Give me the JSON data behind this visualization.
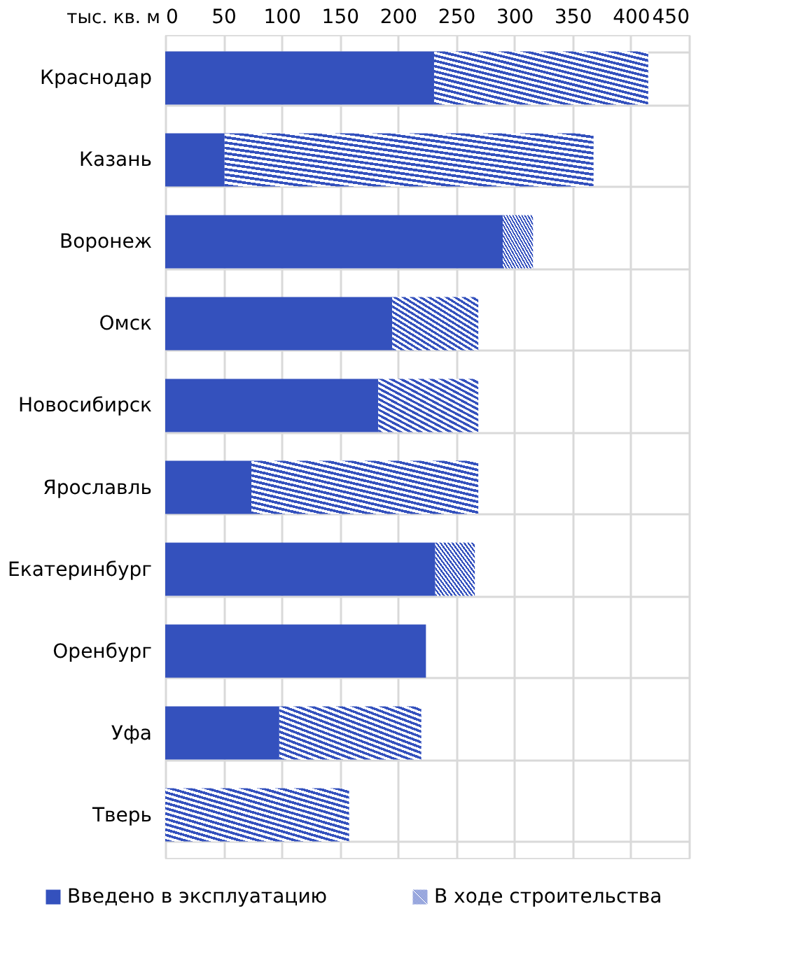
{
  "chart_data": {
    "type": "bar",
    "orientation": "horizontal",
    "stacked": true,
    "xlabel": "тыс. кв. м",
    "categories": [
      "Краснодар",
      "Казань",
      "Воронеж",
      "Омск",
      "Новосибирск",
      "Ярославль",
      "Екатеринбург",
      "Оренбург",
      "Уфа",
      "Тверь"
    ],
    "series": [
      {
        "name": "Введено в эксплуатацию",
        "color": "#3451bd",
        "values": [
          231,
          51,
          290,
          195,
          183,
          74,
          232,
          224,
          98,
          0
        ]
      },
      {
        "name": "В ходе строительства",
        "color": "#3451bd",
        "values": [
          184,
          317,
          26,
          74,
          86,
          195,
          34,
          0,
          122,
          158
        ]
      }
    ],
    "xlim": [
      0,
      450
    ],
    "xticks": [
      0,
      50,
      100,
      150,
      200,
      250,
      300,
      350,
      400,
      450
    ],
    "grid": true,
    "legend": "bottom"
  }
}
